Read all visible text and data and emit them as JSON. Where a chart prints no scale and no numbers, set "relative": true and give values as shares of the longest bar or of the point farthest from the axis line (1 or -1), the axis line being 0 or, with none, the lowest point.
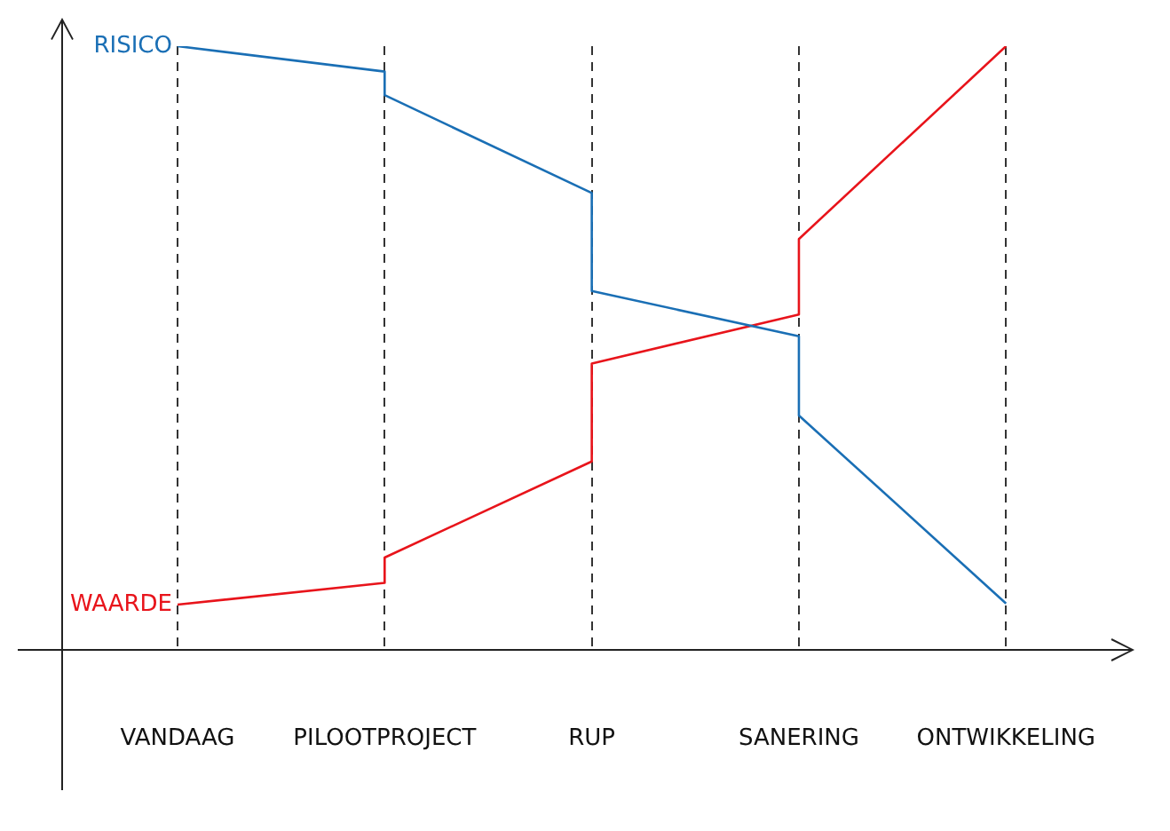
{
  "chart_data": {
    "type": "line",
    "relative": true,
    "categories": [
      "VANDAAG",
      "PILOOTPROJECT",
      "RUP",
      "SANERING",
      "ONTWIKKELING"
    ],
    "series": [
      {
        "name": "RISICO",
        "color": "#1a6fb5",
        "x": [
          "VANDAAG",
          "PILOOTPROJECT",
          "PILOOTPROJECT",
          "RUP",
          "RUP",
          "SANERING",
          "SANERING",
          "ONTWIKKELING"
        ],
        "values": [
          1,
          0.958,
          0.919,
          0.757,
          0.595,
          0.52,
          0.389,
          0.078
        ]
      },
      {
        "name": "WAARDE",
        "color": "#e8141b",
        "x": [
          "VANDAAG",
          "PILOOTPROJECT",
          "PILOOTPROJECT",
          "RUP",
          "RUP",
          "SANERING",
          "SANERING",
          "ONTWIKKELING"
        ],
        "values": [
          0.076,
          0.112,
          0.154,
          0.313,
          0.475,
          0.556,
          0.681,
          1
        ]
      }
    ],
    "grid": "x",
    "legend": false,
    "marker": "none",
    "line_style": "solid"
  }
}
